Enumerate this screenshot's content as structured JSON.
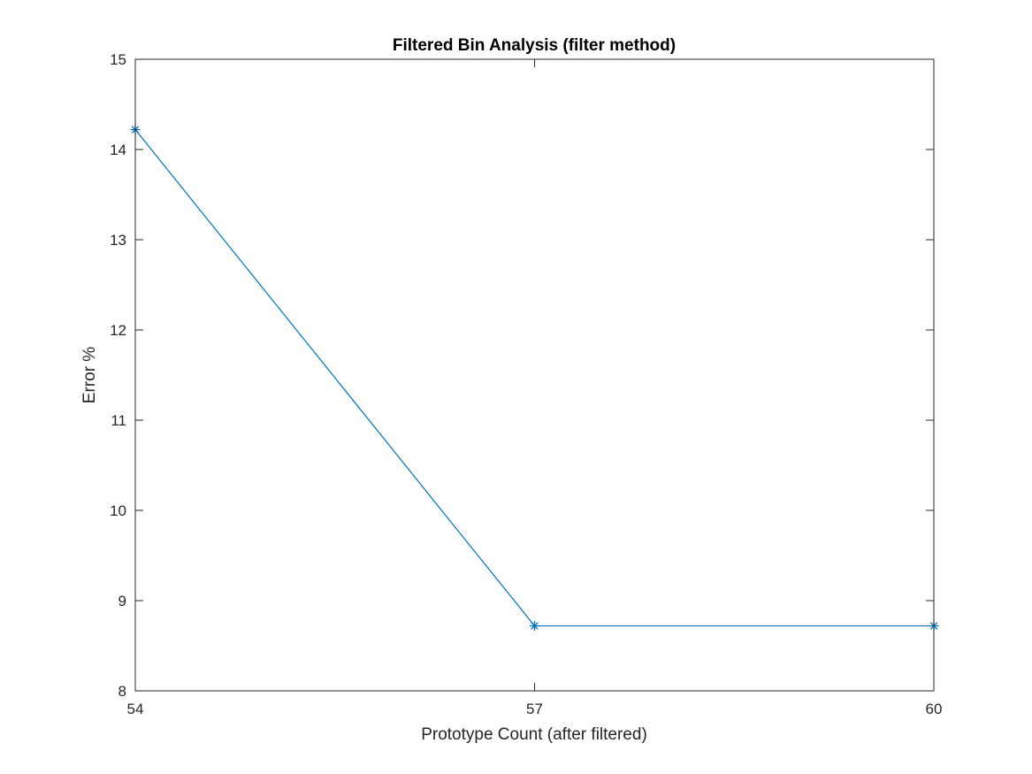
{
  "chart_data": {
    "type": "line",
    "title": "Filtered Bin Analysis (filter method)",
    "xlabel": "Prototype Count (after filtered)",
    "ylabel": "Error %",
    "x": [
      54,
      57,
      60
    ],
    "xticks": [
      54,
      57,
      60
    ],
    "xlim": [
      54,
      60
    ],
    "yticks": [
      8,
      9,
      10,
      11,
      12,
      13,
      14,
      15
    ],
    "ylim": [
      8,
      15
    ],
    "grid": false,
    "series": [
      {
        "values": [
          14.22,
          8.72,
          8.72
        ],
        "color": "#0072BD",
        "marker": "asterisk"
      }
    ],
    "axis_color": "#262626"
  }
}
